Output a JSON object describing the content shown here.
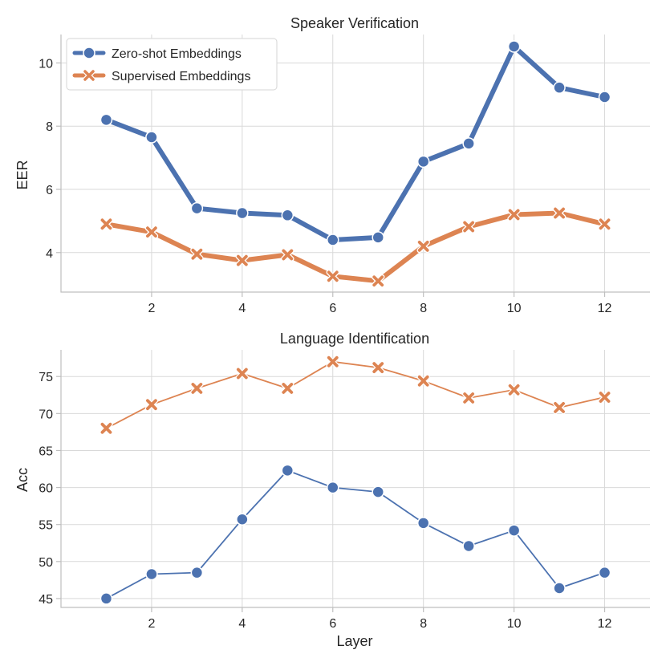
{
  "chart_data": [
    {
      "type": "line",
      "title": "Speaker Verification",
      "xlabel": "",
      "ylabel": "EER",
      "x": [
        1,
        2,
        3,
        4,
        5,
        6,
        7,
        8,
        9,
        10,
        11,
        12
      ],
      "xticks": [
        2,
        4,
        6,
        8,
        10,
        12
      ],
      "yticks": [
        4,
        6,
        8,
        10
      ],
      "xlim": [
        0.0,
        13.0
      ],
      "ylim": [
        2.75,
        10.9
      ],
      "grid": true,
      "legend": "top-left",
      "series": [
        {
          "name": "Zero-shot Embeddings",
          "values": [
            8.2,
            7.65,
            5.4,
            5.25,
            5.18,
            4.4,
            4.48,
            6.88,
            7.45,
            10.52,
            9.22,
            8.92
          ],
          "color": "#4c72b0",
          "marker": "circle"
        },
        {
          "name": "Supervised Embeddings",
          "values": [
            4.9,
            4.65,
            3.95,
            3.75,
            3.93,
            3.25,
            3.1,
            4.2,
            4.82,
            5.2,
            5.25,
            4.9
          ],
          "color": "#dd8452",
          "marker": "x"
        }
      ]
    },
    {
      "type": "line",
      "title": "Language Identification",
      "xlabel": "Layer",
      "ylabel": "Acc",
      "x": [
        1,
        2,
        3,
        4,
        5,
        6,
        7,
        8,
        9,
        10,
        11,
        12
      ],
      "xticks": [
        2,
        4,
        6,
        8,
        10,
        12
      ],
      "yticks": [
        45,
        50,
        55,
        60,
        65,
        70,
        75
      ],
      "xlim": [
        0.0,
        13.0
      ],
      "ylim": [
        43.8,
        78.6
      ],
      "grid": true,
      "legend": "none",
      "series": [
        {
          "name": "Zero-shot Embeddings",
          "values": [
            45.0,
            48.3,
            48.5,
            55.7,
            62.3,
            60.0,
            59.4,
            55.2,
            52.1,
            54.2,
            46.4,
            48.5
          ],
          "color": "#4c72b0",
          "marker": "circle"
        },
        {
          "name": "Supervised Embeddings",
          "values": [
            68.0,
            71.2,
            73.4,
            75.4,
            73.4,
            77.0,
            76.2,
            74.4,
            72.1,
            73.2,
            70.8,
            72.2
          ],
          "color": "#dd8452",
          "marker": "x"
        }
      ]
    }
  ]
}
